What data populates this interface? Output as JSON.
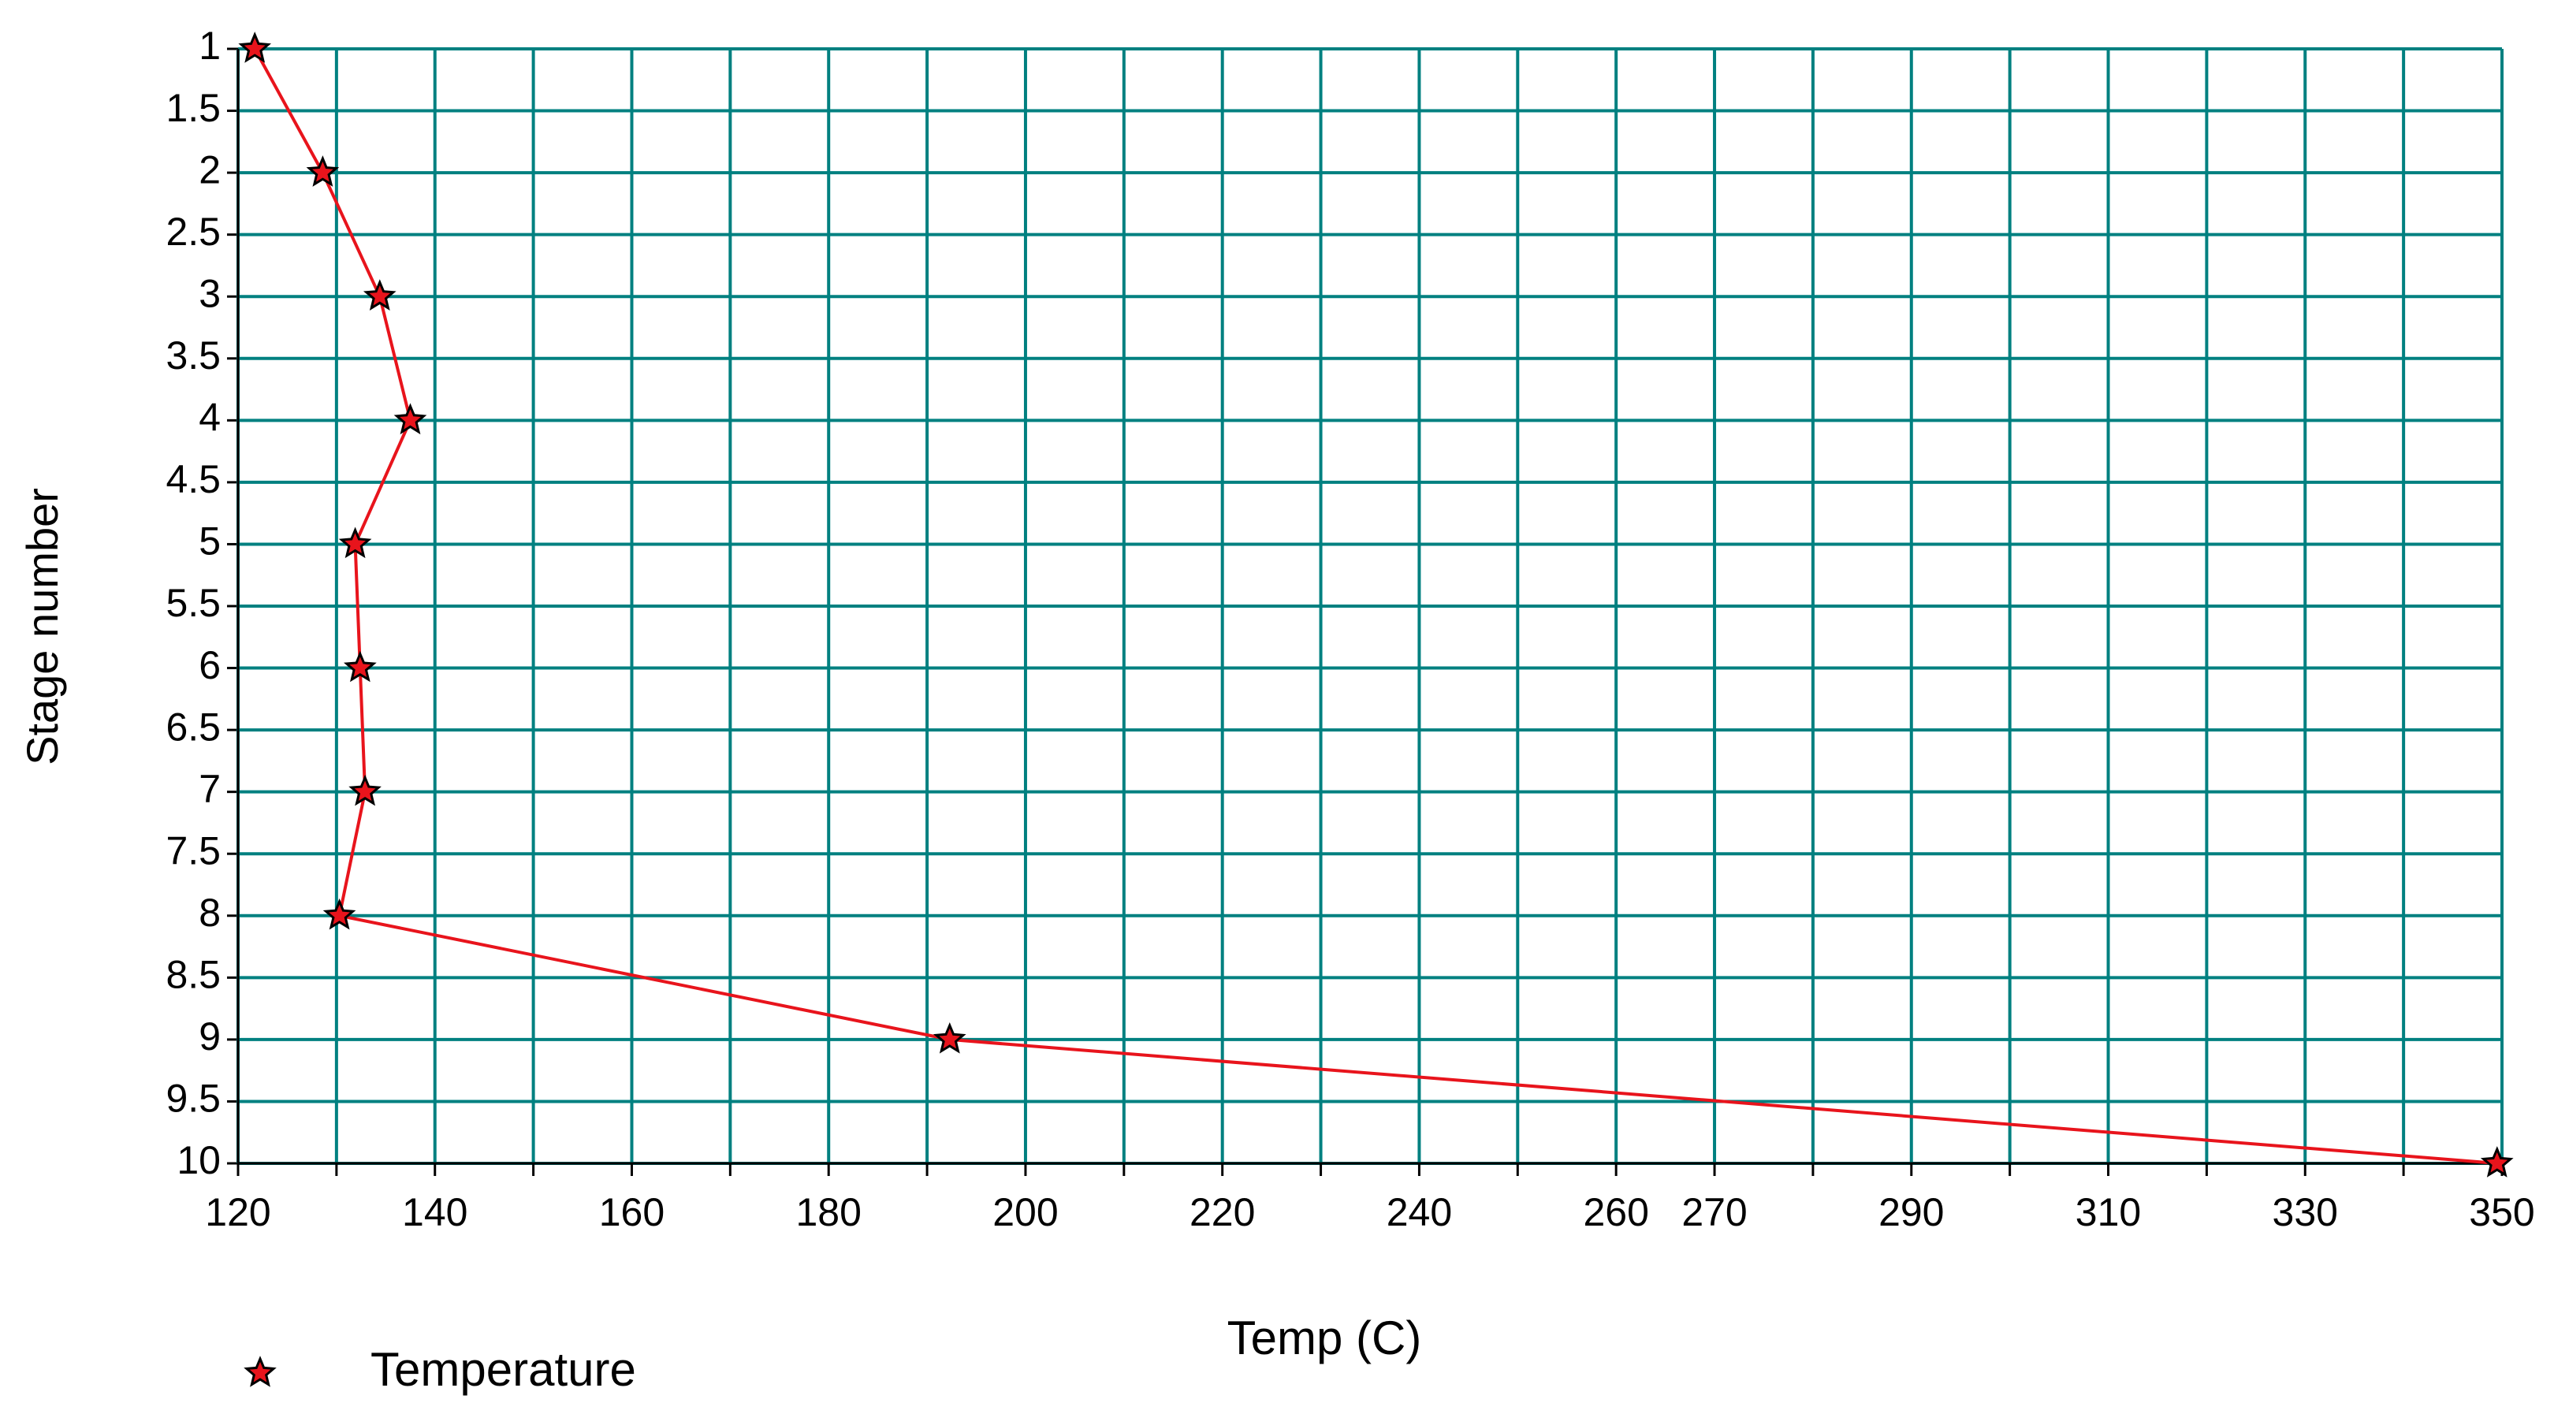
{
  "chart_data": {
    "type": "line",
    "y": [
      1,
      2,
      3,
      4,
      5,
      6,
      7,
      8,
      9,
      10
    ],
    "series": [
      {
        "name": "Temperature",
        "color": "#e8141c",
        "values": [
          121.7,
          128.6,
          134.4,
          137.5,
          131.9,
          132.4,
          132.9,
          130.3,
          192.3,
          349.5
        ]
      }
    ],
    "x_label": "Temp (C)",
    "y_label": "Stage number",
    "xlim": [
      120,
      350
    ],
    "xticks": [
      120,
      140,
      160,
      180,
      200,
      220,
      240,
      260,
      270,
      290,
      310,
      330,
      350
    ],
    "xminor_ticks": [
      130,
      150,
      170,
      190,
      210,
      230,
      250,
      280,
      300,
      320,
      340
    ],
    "ylim": [
      1,
      10
    ],
    "y_inverted": true,
    "yticks": [
      1,
      1.5,
      2,
      2.5,
      3,
      3.5,
      4,
      4.5,
      5,
      5.5,
      6,
      6.5,
      7,
      7.5,
      8,
      8.5,
      9,
      9.5,
      10
    ],
    "grid": true,
    "grid_color": "#008080",
    "legend": "bottom-left"
  }
}
